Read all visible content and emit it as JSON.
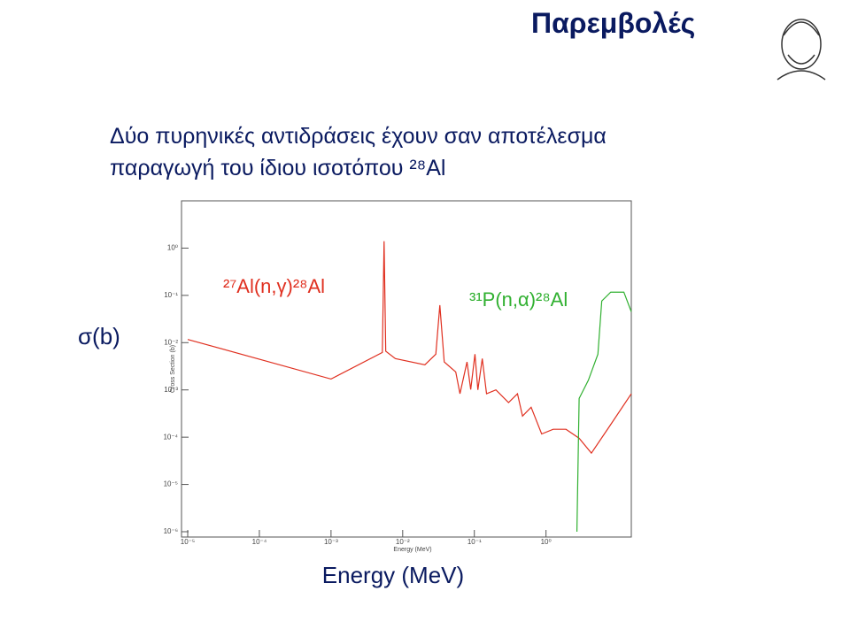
{
  "slide": {
    "title": "Παρεμβολές",
    "lines": [
      "Δύο πυρηνικές αντιδράσεις έχουν σαν αποτέλεσμα",
      "παραγωγή του ίδιου ισοτόπου ²⁸Al"
    ]
  },
  "chart_data": {
    "type": "line",
    "log_x": true,
    "log_y": true,
    "x_label": "Energy (MeV)",
    "y_label": "σ(b)",
    "x_axis_title": "Energy (MeV)",
    "y_axis_title": "Cross Section (b)",
    "xlim": [
      1e-05,
      15.5
    ],
    "ylim": [
      1e-06,
      10
    ],
    "xticks": [
      {
        "value": 1e-05,
        "label": "10⁻⁵"
      },
      {
        "value": 0.0001,
        "label": "10⁻⁴"
      },
      {
        "value": 0.001,
        "label": "10⁻³"
      },
      {
        "value": 0.01,
        "label": "10⁻²"
      },
      {
        "value": 0.1,
        "label": "10⁻¹"
      },
      {
        "value": 1,
        "label": "10⁰"
      }
    ],
    "yticks": [
      {
        "value": 1e-06,
        "label": "10⁻⁶"
      },
      {
        "value": 1e-05,
        "label": "10⁻⁵"
      },
      {
        "value": 0.0001,
        "label": "10⁻⁴"
      },
      {
        "value": 0.001,
        "label": "10⁻³"
      },
      {
        "value": 0.01,
        "label": "10⁻²"
      },
      {
        "value": 0.1,
        "label": "10⁻¹"
      },
      {
        "value": 1,
        "label": "10⁰"
      }
    ],
    "series": [
      {
        "name": "²⁷Al(n,γ)²⁸Al",
        "color": "#e03020",
        "x": [
          1e-05,
          0.001,
          0.0052,
          0.0055,
          0.0058,
          0.0079,
          0.0204,
          0.029,
          0.033,
          0.038,
          0.055,
          0.063,
          0.079,
          0.089,
          0.102,
          0.112,
          0.129,
          0.148,
          0.2,
          0.3,
          0.4,
          0.47,
          0.62,
          0.87,
          1.26,
          1.9,
          2.9,
          4.3,
          7.9,
          15.5
        ],
        "values": [
          0.0117,
          0.0017,
          0.0062,
          1.4,
          0.0066,
          0.0046,
          0.0034,
          0.0057,
          0.062,
          0.0039,
          0.0024,
          0.00083,
          0.0039,
          0.00102,
          0.0057,
          0.001,
          0.0046,
          0.00083,
          0.001,
          0.00054,
          0.00083,
          0.00028,
          0.00043,
          0.000117,
          0.000147,
          0.000147,
          9.5e-05,
          4.6e-05,
          0.00018,
          0.00083
        ]
      },
      {
        "name": "³¹P(n,α)²⁸Al",
        "color": "#30b030",
        "x": [
          2.7,
          2.9,
          3.9,
          5.3,
          6.0,
          8.0,
          12.2,
          15.5
        ],
        "values": [
          1e-06,
          0.00066,
          0.0016,
          0.0057,
          0.076,
          0.117,
          0.117,
          0.045
        ]
      }
    ]
  }
}
